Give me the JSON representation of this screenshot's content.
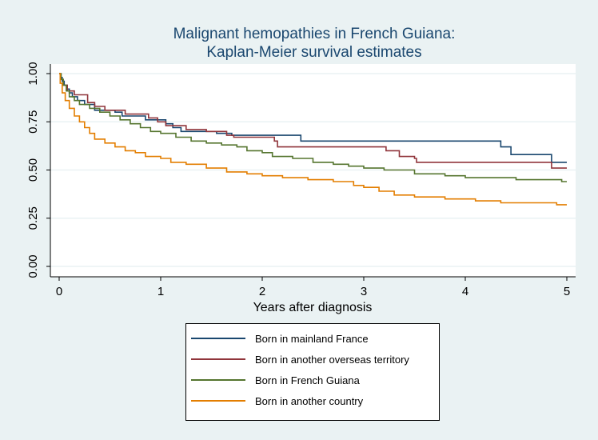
{
  "chart_data": {
    "type": "line",
    "subtype": "step",
    "title": [
      "Malignant hemopathies in French Guiana:",
      "Kaplan-Meier survival estimates"
    ],
    "xlabel": "Years after diagnosis",
    "ylabel": "",
    "xlim": [
      0,
      5
    ],
    "ylim": [
      0,
      1
    ],
    "xticks": [
      "0",
      "1",
      "2",
      "3",
      "4",
      "5"
    ],
    "yticks": [
      "0.00",
      "0.25",
      "0.50",
      "0.75",
      "1.00"
    ],
    "grid": "horizontal",
    "legend_position": "bottom",
    "series": [
      {
        "name": "Born in mainland France",
        "color": "#1a476f",
        "x": [
          0,
          0.01,
          0.03,
          0.05,
          0.08,
          0.1,
          0.13,
          0.18,
          0.25,
          0.35,
          0.55,
          0.62,
          0.85,
          1.05,
          1.12,
          1.2,
          1.55,
          1.7,
          2.05,
          2.38,
          4.35,
          4.45,
          4.85,
          5.0
        ],
        "y": [
          1.0,
          0.98,
          0.96,
          0.94,
          0.92,
          0.9,
          0.88,
          0.86,
          0.84,
          0.81,
          0.8,
          0.78,
          0.76,
          0.74,
          0.72,
          0.7,
          0.69,
          0.68,
          0.68,
          0.65,
          0.62,
          0.58,
          0.54,
          0.54
        ]
      },
      {
        "name": "Born in another overseas territory",
        "color": "#90353b",
        "x": [
          0,
          0.01,
          0.04,
          0.08,
          0.15,
          0.28,
          0.35,
          0.45,
          0.65,
          0.88,
          0.97,
          1.05,
          1.25,
          1.45,
          1.65,
          1.72,
          2.12,
          2.15,
          3.22,
          3.35,
          3.5,
          3.52,
          4.85,
          5.0
        ],
        "y": [
          1.0,
          0.97,
          0.94,
          0.91,
          0.89,
          0.85,
          0.83,
          0.81,
          0.79,
          0.77,
          0.75,
          0.73,
          0.71,
          0.7,
          0.68,
          0.67,
          0.65,
          0.62,
          0.6,
          0.57,
          0.56,
          0.54,
          0.51,
          0.51
        ]
      },
      {
        "name": "Born in French Guiana",
        "color": "#55752f",
        "x": [
          0,
          0.02,
          0.04,
          0.07,
          0.1,
          0.15,
          0.2,
          0.3,
          0.4,
          0.5,
          0.6,
          0.7,
          0.8,
          0.9,
          1.0,
          1.15,
          1.3,
          1.45,
          1.6,
          1.75,
          1.85,
          2.0,
          2.1,
          2.3,
          2.5,
          2.7,
          2.85,
          3.0,
          3.2,
          3.5,
          3.8,
          4.0,
          4.5,
          4.95,
          5.0
        ],
        "y": [
          1.0,
          0.97,
          0.94,
          0.91,
          0.88,
          0.86,
          0.84,
          0.82,
          0.8,
          0.78,
          0.76,
          0.74,
          0.72,
          0.7,
          0.69,
          0.67,
          0.65,
          0.64,
          0.63,
          0.62,
          0.6,
          0.59,
          0.57,
          0.56,
          0.54,
          0.53,
          0.52,
          0.51,
          0.5,
          0.48,
          0.47,
          0.46,
          0.45,
          0.44,
          0.44
        ]
      },
      {
        "name": "Born in another country",
        "color": "#e37e00",
        "x": [
          0,
          0.01,
          0.03,
          0.06,
          0.1,
          0.15,
          0.2,
          0.25,
          0.3,
          0.35,
          0.45,
          0.55,
          0.65,
          0.75,
          0.85,
          1.0,
          1.1,
          1.25,
          1.45,
          1.65,
          1.85,
          2.0,
          2.2,
          2.45,
          2.7,
          2.9,
          3.0,
          3.15,
          3.3,
          3.5,
          3.8,
          4.1,
          4.35,
          4.9,
          5.0
        ],
        "y": [
          1.0,
          0.95,
          0.9,
          0.86,
          0.82,
          0.78,
          0.75,
          0.72,
          0.69,
          0.66,
          0.64,
          0.62,
          0.6,
          0.59,
          0.57,
          0.56,
          0.54,
          0.53,
          0.51,
          0.49,
          0.48,
          0.47,
          0.46,
          0.45,
          0.44,
          0.42,
          0.41,
          0.39,
          0.37,
          0.36,
          0.35,
          0.34,
          0.33,
          0.32,
          0.32
        ]
      }
    ]
  }
}
